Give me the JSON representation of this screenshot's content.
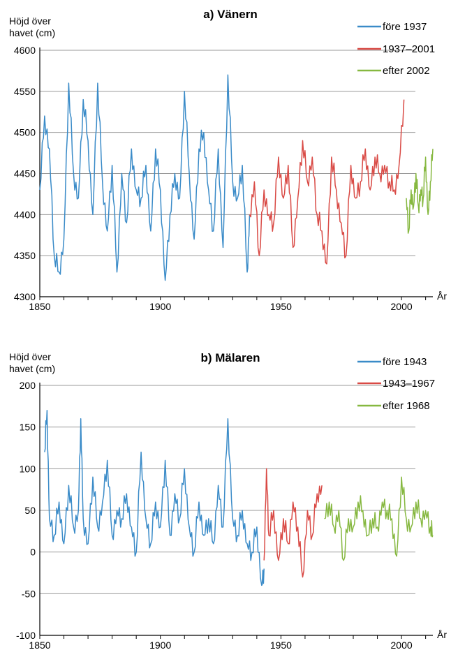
{
  "chart_data": [
    {
      "type": "line",
      "title": "a) Vänern",
      "ylabel": "Höjd över havet (cm)",
      "xlabel": "År",
      "xlim": [
        1850,
        2013
      ],
      "ylim": [
        4300,
        4600
      ],
      "x_ticks": [
        1850,
        1900,
        1950,
        2000
      ],
      "y_ticks": [
        4300,
        4350,
        4400,
        4450,
        4500,
        4550,
        4600
      ],
      "grid": "horizontal",
      "legend": "top-right",
      "series": [
        {
          "name": "före 1937",
          "color": "#3a8bc8",
          "x": [
            1850,
            1852,
            1854,
            1856,
            1858,
            1860,
            1862,
            1864,
            1866,
            1868,
            1870,
            1872,
            1874,
            1876,
            1878,
            1880,
            1882,
            1884,
            1886,
            1888,
            1890,
            1892,
            1894,
            1896,
            1898,
            1900,
            1902,
            1904,
            1906,
            1908,
            1910,
            1912,
            1914,
            1916,
            1918,
            1920,
            1922,
            1924,
            1926,
            1928,
            1930,
            1932,
            1934,
            1936,
            1937
          ],
          "y": [
            4430,
            4520,
            4480,
            4350,
            4330,
            4370,
            4560,
            4450,
            4420,
            4540,
            4490,
            4400,
            4560,
            4440,
            4380,
            4460,
            4330,
            4450,
            4390,
            4480,
            4430,
            4420,
            4460,
            4380,
            4480,
            4430,
            4320,
            4400,
            4450,
            4420,
            4550,
            4450,
            4370,
            4480,
            4500,
            4430,
            4380,
            4480,
            4360,
            4570,
            4440,
            4420,
            4460,
            4330,
            4400
          ]
        },
        {
          "name": "1937–2001",
          "color": "#d94a45",
          "x": [
            1937,
            1939,
            1941,
            1943,
            1945,
            1947,
            1949,
            1951,
            1953,
            1955,
            1957,
            1959,
            1961,
            1963,
            1965,
            1967,
            1969,
            1971,
            1973,
            1975,
            1977,
            1979,
            1981,
            1983,
            1985,
            1987,
            1989,
            1991,
            1993,
            1995,
            1997,
            1999,
            2001
          ],
          "y": [
            4400,
            4440,
            4350,
            4430,
            4400,
            4390,
            4470,
            4420,
            4460,
            4360,
            4420,
            4490,
            4440,
            4470,
            4400,
            4380,
            4340,
            4470,
            4430,
            4390,
            4350,
            4460,
            4420,
            4440,
            4480,
            4430,
            4470,
            4450,
            4460,
            4440,
            4430,
            4460,
            4540
          ]
        },
        {
          "name": "efter 2002",
          "color": "#86b840",
          "x": [
            2002,
            2003,
            2004,
            2005,
            2006,
            2007,
            2008,
            2009,
            2010,
            2011,
            2012,
            2013
          ],
          "y": [
            4420,
            4380,
            4430,
            4410,
            4450,
            4410,
            4430,
            4420,
            4470,
            4400,
            4440,
            4480
          ]
        }
      ]
    },
    {
      "type": "line",
      "title": "b) Mälaren",
      "ylabel": "Höjd över havet (cm)",
      "xlabel": "År",
      "xlim": [
        1850,
        2013
      ],
      "ylim": [
        -100,
        200
      ],
      "x_ticks": [
        1850,
        1900,
        1950,
        2000
      ],
      "y_ticks": [
        -100,
        -50,
        0,
        50,
        100,
        150,
        200
      ],
      "grid": "horizontal",
      "legend": "top-right",
      "series": [
        {
          "name": "före 1943",
          "color": "#3a8bc8",
          "x": [
            1852,
            1853,
            1854,
            1856,
            1858,
            1860,
            1862,
            1864,
            1866,
            1867,
            1868,
            1870,
            1872,
            1874,
            1876,
            1878,
            1880,
            1882,
            1884,
            1886,
            1888,
            1890,
            1892,
            1894,
            1896,
            1898,
            1900,
            1902,
            1904,
            1906,
            1908,
            1910,
            1912,
            1914,
            1916,
            1918,
            1920,
            1922,
            1924,
            1926,
            1928,
            1930,
            1932,
            1934,
            1936,
            1938,
            1940,
            1942,
            1943
          ],
          "y": [
            120,
            170,
            40,
            20,
            60,
            10,
            80,
            30,
            50,
            160,
            40,
            10,
            90,
            30,
            60,
            110,
            20,
            50,
            40,
            70,
            30,
            0,
            120,
            40,
            10,
            60,
            30,
            110,
            20,
            70,
            40,
            100,
            30,
            0,
            60,
            20,
            40,
            10,
            80,
            30,
            160,
            40,
            20,
            50,
            10,
            0,
            30,
            -40,
            -20
          ]
        },
        {
          "name": "1943–1967",
          "color": "#d94a45",
          "x": [
            1943,
            1944,
            1945,
            1947,
            1949,
            1951,
            1953,
            1955,
            1957,
            1959,
            1961,
            1963,
            1965,
            1967
          ],
          "y": [
            -10,
            100,
            20,
            50,
            -10,
            40,
            10,
            60,
            30,
            -30,
            50,
            20,
            70,
            80
          ]
        },
        {
          "name": "efter 1968",
          "color": "#86b840",
          "x": [
            1968,
            1970,
            1972,
            1974,
            1976,
            1978,
            1980,
            1982,
            1984,
            1986,
            1988,
            1990,
            1992,
            1994,
            1996,
            1998,
            2000,
            2002,
            2004,
            2006,
            2008,
            2010,
            2012,
            2013
          ],
          "y": [
            40,
            60,
            30,
            50,
            -10,
            40,
            30,
            60,
            50,
            20,
            40,
            30,
            60,
            50,
            40,
            -5,
            90,
            40,
            30,
            60,
            40,
            50,
            30,
            20
          ]
        }
      ]
    }
  ]
}
